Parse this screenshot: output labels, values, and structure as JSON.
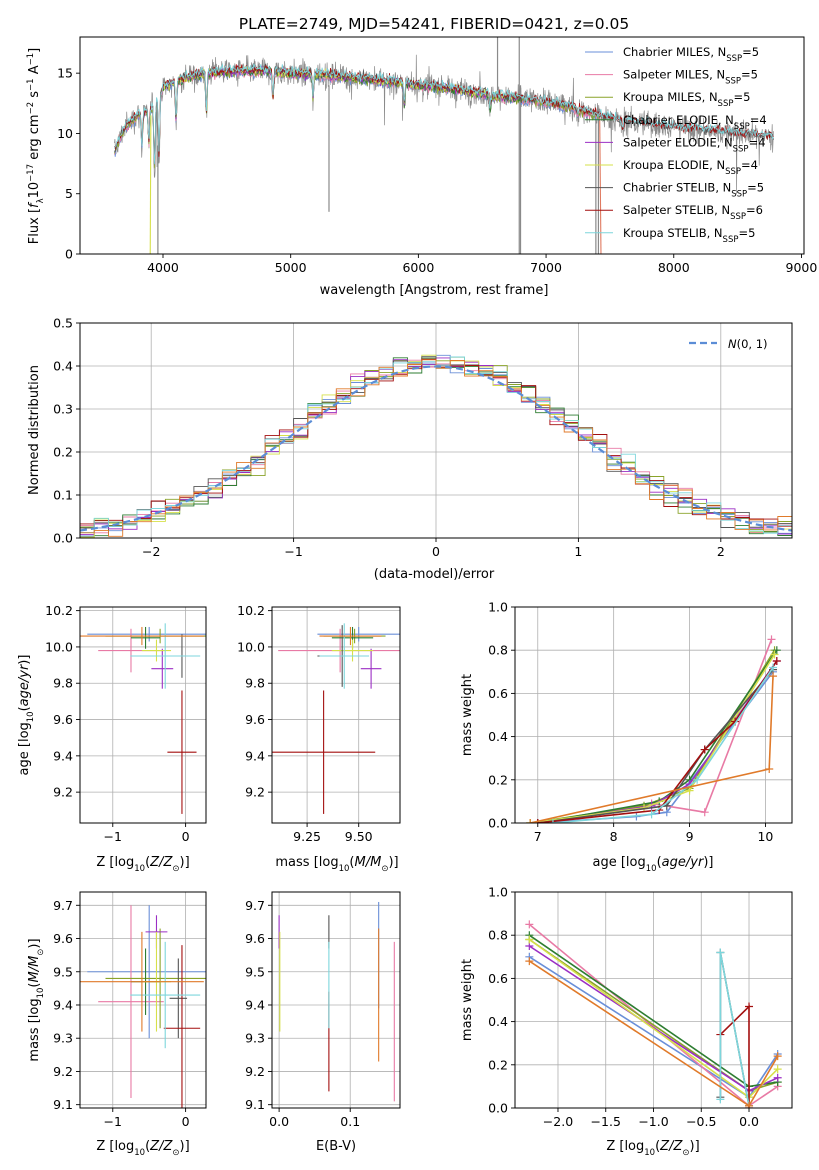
{
  "title": "PLATE=2749, MJD=54241, FIBERID=0421, z=0.05",
  "colors": {
    "Chabrier MILES": "#6a8fd8",
    "Salpeter MILES": "#e87aa5",
    "Kroupa MILES": "#8aa32a",
    "Chabrier ELODIE": "#2e7d32",
    "Salpeter ELODIE": "#9b2fc4",
    "Kroupa ELODIE": "#d6e04a",
    "Chabrier STELIB": "#555555",
    "Salpeter STELIB": "#a30f0f",
    "Kroupa STELIB": "#7dd6dc",
    "data": "#8a8a8a",
    "extra": "#e07a2a",
    "gaussian": "#5b8dd6"
  },
  "chart_data": [
    {
      "id": "spectrum",
      "type": "line",
      "title": "PLATE=2749, MJD=54241, FIBERID=0421, z=0.05",
      "xlabel": "wavelength [Angstrom, rest frame]",
      "ylabel": "Flux [fλ10⁻¹⁷ erg cm⁻² s⁻¹ A⁻¹]",
      "xlim": [
        3350,
        9020
      ],
      "ylim": [
        0,
        18
      ],
      "xticks": [
        4000,
        5000,
        6000,
        7000,
        8000,
        9000
      ],
      "yticks": [
        0,
        5,
        10,
        15
      ],
      "grid": false,
      "legend_position": "top-right",
      "legend": [
        {
          "model": "Chabrier MILES",
          "label": "Chabrier MILES, N",
          "sub": "SSP",
          "tail": "=5"
        },
        {
          "model": "Salpeter MILES",
          "label": "Salpeter MILES, N",
          "sub": "SSP",
          "tail": "=5"
        },
        {
          "model": "Kroupa MILES",
          "label": "Kroupa MILES, N",
          "sub": "SSP",
          "tail": "=5"
        },
        {
          "model": "Chabrier ELODIE",
          "label": "Chabrier ELODIE, N",
          "sub": "SSP",
          "tail": "=4"
        },
        {
          "model": "Salpeter ELODIE",
          "label": "Salpeter ELODIE, N",
          "sub": "SSP",
          "tail": "=4"
        },
        {
          "model": "Kroupa ELODIE",
          "label": "Kroupa ELODIE, N",
          "sub": "SSP",
          "tail": "=4"
        },
        {
          "model": "Chabrier STELIB",
          "label": "Chabrier STELIB, N",
          "sub": "SSP",
          "tail": "=5"
        },
        {
          "model": "Salpeter STELIB",
          "label": "Salpeter STELIB, N",
          "sub": "SSP",
          "tail": "=6"
        },
        {
          "model": "Kroupa STELIB",
          "label": "Kroupa STELIB, N",
          "sub": "SSP",
          "tail": "=5"
        }
      ],
      "continuum": {
        "x": [
          3620,
          3700,
          3800,
          3900,
          3960,
          4000,
          4100,
          4200,
          4400,
          4600,
          4800,
          5000,
          5200,
          5400,
          5600,
          5800,
          6000,
          6200,
          6400,
          6600,
          6800,
          7000,
          7200,
          7400,
          7600,
          7800,
          8000,
          8200,
          8400,
          8600,
          8780
        ],
        "y": [
          8.5,
          10.5,
          11.5,
          12.0,
          12.8,
          13.8,
          14.3,
          14.7,
          15.1,
          15.2,
          15.2,
          15.0,
          14.9,
          14.7,
          14.5,
          14.3,
          14.0,
          13.8,
          13.5,
          13.1,
          12.9,
          12.6,
          12.2,
          11.5,
          11.0,
          10.8,
          10.5,
          10.3,
          10.1,
          9.9,
          9.7
        ]
      }
    },
    {
      "id": "residual-hist",
      "type": "line",
      "xlabel": "(data-model)/error",
      "ylabel": "Normed distribution",
      "xlim": [
        -2.5,
        2.5
      ],
      "ylim": [
        0,
        0.5
      ],
      "xticks": [
        -2,
        -1,
        0,
        1,
        2
      ],
      "yticks": [
        0.0,
        0.1,
        0.2,
        0.3,
        0.4,
        0.5
      ],
      "grid": true,
      "legend_position": "top-right",
      "legend": [
        {
          "label": "N(0, 1)"
        }
      ],
      "bin_width": 0.1
    },
    {
      "id": "age-vs-z",
      "type": "scatter",
      "xlabel": "Z [log₁₀(Z/Z☉)]",
      "ylabel": "age  [log₁₀(age/yr)]",
      "xlim": [
        -1.45,
        0.28
      ],
      "ylim": [
        9.03,
        10.22
      ],
      "xticks": [
        -1,
        0
      ],
      "yticks": [
        9.2,
        9.4,
        9.6,
        9.8,
        10.0,
        10.2
      ],
      "grid": true,
      "points": [
        {
          "model": "Chabrier MILES",
          "x": -0.5,
          "y": 10.07,
          "xerr": 0.85,
          "yerr": 0.04
        },
        {
          "model": "Salpeter MILES",
          "x": -0.75,
          "y": 9.98,
          "xerr": 0.45,
          "yerr": 0.12
        },
        {
          "model": "Kroupa MILES",
          "x": -0.35,
          "y": 10.06,
          "xerr": 0.75,
          "yerr": 0.04
        },
        {
          "model": "Chabrier ELODIE",
          "x": -0.55,
          "y": 10.05,
          "xerr": 0.2,
          "yerr": 0.06
        },
        {
          "model": "Salpeter ELODIE",
          "x": -0.32,
          "y": 9.88,
          "xerr": 0.15,
          "yerr": 0.11
        },
        {
          "model": "Kroupa ELODIE",
          "x": -0.4,
          "y": 9.98,
          "xerr": 0.2,
          "yerr": 0.06
        },
        {
          "model": "Chabrier STELIB",
          "x": -0.05,
          "y": 9.95,
          "xerr": 0.2,
          "yerr": 0.12
        },
        {
          "model": "Salpeter STELIB",
          "x": -0.05,
          "y": 9.42,
          "xerr": 0.2,
          "yerr": 0.34
        },
        {
          "model": "Kroupa STELIB",
          "x": -0.28,
          "y": 9.95,
          "xerr": 0.48,
          "yerr": 0.18
        },
        {
          "model": "extra",
          "x": -0.6,
          "y": 10.06,
          "xerr": 0.85,
          "yerr": 0.05
        }
      ]
    },
    {
      "id": "age-vs-mass",
      "type": "scatter",
      "xlabel": "mass [log₁₀(M/M☉)]",
      "ylabel": "",
      "xlim": [
        9.08,
        9.7
      ],
      "ylim": [
        9.03,
        10.22
      ],
      "xticks": [
        9.25,
        9.5
      ],
      "xticklabels": [
        "9.25",
        "9.50"
      ],
      "yticks": [
        9.2,
        9.4,
        9.6,
        9.8,
        10.0,
        10.2
      ],
      "grid": true,
      "points": [
        {
          "model": "Chabrier MILES",
          "x": 9.5,
          "y": 10.07,
          "xerr": 0.2,
          "yerr": 0.04
        },
        {
          "model": "Salpeter MILES",
          "x": 9.41,
          "y": 9.98,
          "xerr": 0.3,
          "yerr": 0.12
        },
        {
          "model": "Kroupa MILES",
          "x": 9.48,
          "y": 10.06,
          "xerr": 0.15,
          "yerr": 0.04
        },
        {
          "model": "Chabrier ELODIE",
          "x": 9.47,
          "y": 10.05,
          "xerr": 0.1,
          "yerr": 0.06
        },
        {
          "model": "Salpeter ELODIE",
          "x": 9.56,
          "y": 9.88,
          "xerr": 0.05,
          "yerr": 0.11
        },
        {
          "model": "Kroupa ELODIE",
          "x": 9.47,
          "y": 9.98,
          "xerr": 0.1,
          "yerr": 0.06
        },
        {
          "model": "Chabrier STELIB",
          "x": 9.42,
          "y": 9.95,
          "xerr": 0.12,
          "yerr": 0.17
        },
        {
          "model": "Salpeter STELIB",
          "x": 9.33,
          "y": 9.42,
          "xerr": 0.25,
          "yerr": 0.34
        },
        {
          "model": "Kroupa STELIB",
          "x": 9.43,
          "y": 9.95,
          "xerr": 0.12,
          "yerr": 0.18
        },
        {
          "model": "extra",
          "x": 9.46,
          "y": 10.06,
          "xerr": 0.15,
          "yerr": 0.05
        }
      ]
    },
    {
      "id": "massweight-vs-age",
      "type": "line",
      "xlabel": "age  [log₁₀(age/yr)]",
      "ylabel": "mass weight",
      "xlim": [
        6.7,
        10.35
      ],
      "ylim": [
        0,
        1.0
      ],
      "xticks": [
        7,
        8,
        9,
        10
      ],
      "yticks": [
        0.0,
        0.2,
        0.4,
        0.6,
        0.8,
        1.0
      ],
      "grid": true,
      "series": [
        {
          "model": "Chabrier MILES",
          "x": [
            7.0,
            8.3,
            8.7,
            10.1
          ],
          "y": [
            0.0,
            0.03,
            0.05,
            0.7
          ]
        },
        {
          "model": "Salpeter MILES",
          "x": [
            7.0,
            8.5,
            9.2,
            10.08
          ],
          "y": [
            0.0,
            0.09,
            0.05,
            0.85
          ]
        },
        {
          "model": "Kroupa MILES",
          "x": [
            6.9,
            8.4,
            9.0,
            10.12
          ],
          "y": [
            0.0,
            0.08,
            0.16,
            0.8
          ]
        },
        {
          "model": "Chabrier ELODIE",
          "x": [
            7.0,
            8.6,
            9.0,
            10.15
          ],
          "y": [
            0.0,
            0.1,
            0.2,
            0.8
          ]
        },
        {
          "model": "Salpeter ELODIE",
          "x": [
            7.0,
            8.5,
            9.0,
            10.15
          ],
          "y": [
            0.0,
            0.08,
            0.18,
            0.75
          ]
        },
        {
          "model": "Kroupa ELODIE",
          "x": [
            6.9,
            8.4,
            9.0,
            10.12
          ],
          "y": [
            0.0,
            0.07,
            0.15,
            0.78
          ]
        },
        {
          "model": "Chabrier STELIB",
          "x": [
            7.0,
            8.7,
            9.2,
            10.1
          ],
          "y": [
            0.0,
            0.08,
            0.34,
            0.71
          ]
        },
        {
          "model": "Salpeter STELIB",
          "x": [
            7.0,
            8.6,
            9.2,
            9.6,
            10.15
          ],
          "y": [
            0.0,
            0.06,
            0.34,
            0.47,
            0.75
          ]
        },
        {
          "model": "Kroupa STELIB",
          "x": [
            7.2,
            8.5,
            9.1,
            10.1
          ],
          "y": [
            0.0,
            0.04,
            0.2,
            0.72
          ]
        },
        {
          "model": "extra",
          "x": [
            6.9,
            10.05,
            10.1
          ],
          "y": [
            0.0,
            0.25,
            0.68
          ]
        }
      ]
    },
    {
      "id": "mass-vs-z",
      "type": "scatter",
      "xlabel": "Z [log₁₀(Z/Z☉)]",
      "ylabel": "mass [log₁₀(M/M☉)]",
      "xlim": [
        -1.45,
        0.28
      ],
      "ylim": [
        9.09,
        9.74
      ],
      "xticks": [
        -1,
        0
      ],
      "yticks": [
        9.1,
        9.2,
        9.3,
        9.4,
        9.5,
        9.6,
        9.7
      ],
      "grid": true,
      "points": [
        {
          "model": "Chabrier MILES",
          "x": -0.5,
          "y": 9.5,
          "xerr": 0.85,
          "yerr": 0.2
        },
        {
          "model": "Salpeter MILES",
          "x": -0.75,
          "y": 9.41,
          "xerr": 0.45,
          "yerr": 0.29
        },
        {
          "model": "Kroupa MILES",
          "x": -0.35,
          "y": 9.48,
          "xerr": 0.75,
          "yerr": 0.15
        },
        {
          "model": "Chabrier ELODIE",
          "x": -0.55,
          "y": 9.47,
          "xerr": 0.2,
          "yerr": 0.1
        },
        {
          "model": "Salpeter ELODIE",
          "x": -0.4,
          "y": 9.62,
          "xerr": 0.15,
          "yerr": 0.05
        },
        {
          "model": "Kroupa ELODIE",
          "x": -0.4,
          "y": 9.47,
          "xerr": 0.2,
          "yerr": 0.15
        },
        {
          "model": "Chabrier STELIB",
          "x": -0.1,
          "y": 9.42,
          "xerr": 0.12,
          "yerr": 0.12
        },
        {
          "model": "Salpeter STELIB",
          "x": -0.05,
          "y": 9.33,
          "xerr": 0.25,
          "yerr": 0.25
        },
        {
          "model": "Kroupa STELIB",
          "x": -0.28,
          "y": 9.43,
          "xerr": 0.48,
          "yerr": 0.16
        },
        {
          "model": "extra",
          "x": -0.6,
          "y": 9.47,
          "xerr": 0.85,
          "yerr": 0.15
        }
      ]
    },
    {
      "id": "ebv-mass",
      "type": "scatter",
      "xlabel": "E(B-V)",
      "ylabel": "",
      "xlim": [
        -0.01,
        0.17
      ],
      "ylim": [
        9.09,
        9.74
      ],
      "xticks": [
        0.0,
        0.1
      ],
      "xticklabels": [
        "0.0",
        "0.1"
      ],
      "yticks": [
        9.1,
        9.2,
        9.3,
        9.4,
        9.5,
        9.6,
        9.7
      ],
      "grid": true,
      "points": [
        {
          "model": "Salpeter ELODIE",
          "x": 0.0,
          "y": 9.62,
          "yerr": 0.05
        },
        {
          "model": "Kroupa ELODIE",
          "x": 0.001,
          "y": 9.47,
          "yerr": 0.15
        },
        {
          "model": "Salpeter STELIB",
          "x": 0.07,
          "y": 9.29,
          "yerr": 0.15
        },
        {
          "model": "Chabrier STELIB",
          "x": 0.07,
          "y": 9.62,
          "yerr": 0.05
        },
        {
          "model": "Kroupa STELIB",
          "x": 0.07,
          "y": 9.46,
          "yerr": 0.13
        },
        {
          "model": "Chabrier MILES",
          "x": 0.14,
          "y": 9.55,
          "yerr": 0.16
        },
        {
          "model": "extra",
          "x": 0.14,
          "y": 9.43,
          "yerr": 0.2
        },
        {
          "model": "Salpeter MILES",
          "x": 0.162,
          "y": 9.35,
          "yerr": 0.24
        }
      ]
    },
    {
      "id": "massweight-vs-z",
      "type": "line",
      "xlabel": "Z [log₁₀(Z/Z☉)]",
      "ylabel": "mass weight",
      "xlim": [
        -2.45,
        0.45
      ],
      "ylim": [
        0,
        1.0
      ],
      "xticks": [
        -2.0,
        -1.5,
        -1.0,
        -0.5,
        0.0
      ],
      "xticklabels": [
        "−2.0",
        "−1.5",
        "−1.0",
        "−0.5",
        "0.0"
      ],
      "yticks": [
        0.0,
        0.2,
        0.4,
        0.6,
        0.8,
        1.0
      ],
      "grid": true,
      "series": [
        {
          "model": "Chabrier MILES",
          "x": [
            -2.3,
            0.0,
            0.3
          ],
          "y": [
            0.7,
            0.05,
            0.25
          ]
        },
        {
          "model": "Salpeter MILES",
          "x": [
            -2.3,
            0.0,
            0.3
          ],
          "y": [
            0.85,
            0.01,
            0.1
          ]
        },
        {
          "model": "Kroupa MILES",
          "x": [
            -2.3,
            0.0,
            0.3
          ],
          "y": [
            0.78,
            0.08,
            0.12
          ]
        },
        {
          "model": "Chabrier ELODIE",
          "x": [
            -2.3,
            0.0,
            0.3
          ],
          "y": [
            0.8,
            0.1,
            0.12
          ]
        },
        {
          "model": "Salpeter ELODIE",
          "x": [
            -2.3,
            0.0,
            0.3
          ],
          "y": [
            0.75,
            0.08,
            0.14
          ]
        },
        {
          "model": "Kroupa ELODIE",
          "x": [
            -2.3,
            0.0,
            0.3
          ],
          "y": [
            0.78,
            0.05,
            0.18
          ]
        },
        {
          "model": "Chabrier STELIB",
          "x": [
            -0.3,
            -0.3,
            0.0
          ],
          "y": [
            0.05,
            0.72,
            0.01
          ]
        },
        {
          "model": "Salpeter STELIB",
          "x": [
            -0.3,
            0.0,
            0.0
          ],
          "y": [
            0.34,
            0.47,
            0.0
          ]
        },
        {
          "model": "Kroupa STELIB",
          "x": [
            -0.3,
            -0.3,
            0.0
          ],
          "y": [
            0.04,
            0.72,
            0.01
          ]
        },
        {
          "model": "extra",
          "x": [
            -2.3,
            0.0,
            0.3
          ],
          "y": [
            0.68,
            0.01,
            0.24
          ]
        }
      ]
    }
  ]
}
